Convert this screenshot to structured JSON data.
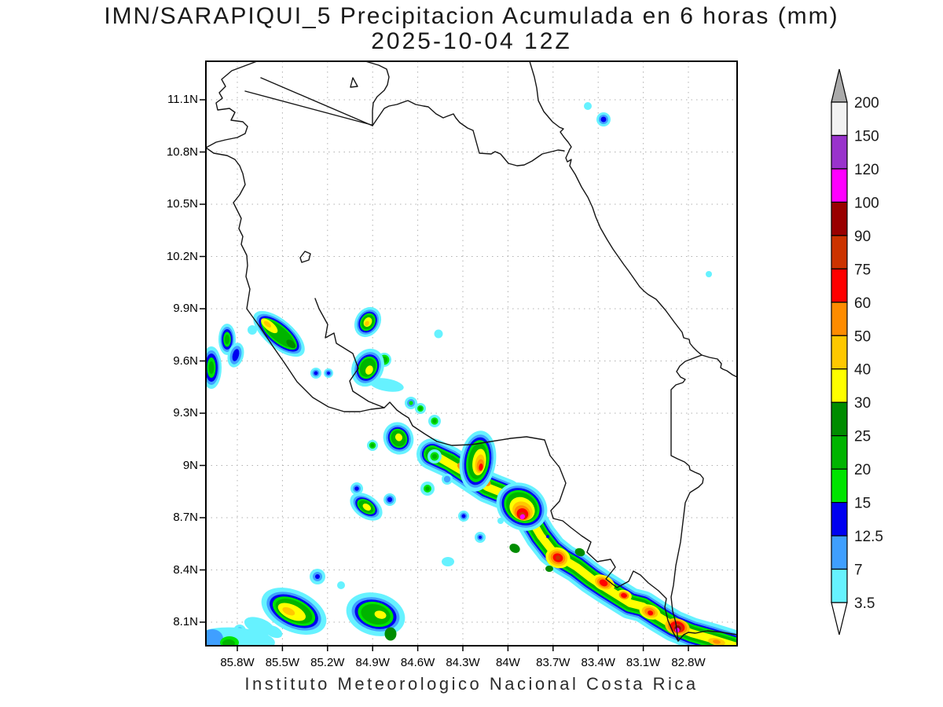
{
  "title": {
    "line1": "IMN/SARAPIQUI_5 Precipitacion Acumulada en 6 horas (mm)",
    "line2": "2025-10-04 12Z"
  },
  "footer": "Instituto Meteorologico Nacional Costa Rica",
  "map": {
    "lat_labels": [
      "11.1N",
      "10.8N",
      "10.5N",
      "10.2N",
      "9.9N",
      "9.6N",
      "9.3N",
      "9N",
      "8.7N",
      "8.4N",
      "8.1N"
    ],
    "lon_labels": [
      "85.8W",
      "85.5W",
      "85.2W",
      "84.9W",
      "84.6W",
      "84.3W",
      "84W",
      "83.7W",
      "83.4W",
      "83.1W",
      "82.8W"
    ]
  },
  "colorbar": {
    "unit": "mm",
    "labels": [
      "200",
      "150",
      "120",
      "100",
      "90",
      "75",
      "60",
      "50",
      "40",
      "30",
      "25",
      "20",
      "15",
      "12.5",
      "7",
      "3.5"
    ],
    "colors": [
      "#f2f2f2",
      "#9933cc",
      "#ff00ff",
      "#990000",
      "#cc3300",
      "#ff0000",
      "#ff8c00",
      "#ffc800",
      "#ffff00",
      "#008c00",
      "#00b400",
      "#00e400",
      "#0000f0",
      "#3f9fff",
      "#66f2ff"
    ],
    "above_color": "#aaaaaa",
    "below_color": "#ffffff"
  }
}
